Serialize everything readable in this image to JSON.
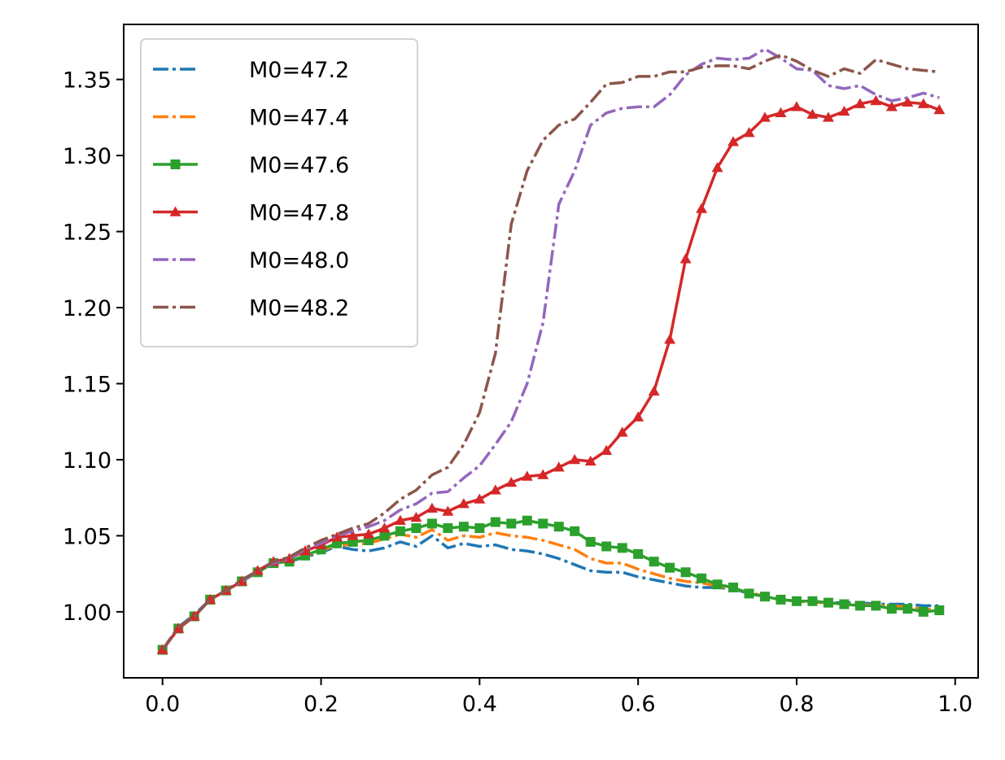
{
  "chart_data": {
    "type": "line",
    "title": "",
    "xlabel": "",
    "ylabel": "",
    "xlim": [
      -0.049,
      1.029
    ],
    "ylim": [
      0.9566,
      1.3862
    ],
    "xticks": [
      0.0,
      0.2,
      0.4,
      0.6,
      0.8,
      1.0
    ],
    "xtick_labels": [
      "0.0",
      "0.2",
      "0.4",
      "0.6",
      "0.8",
      "1.0"
    ],
    "yticks": [
      1.0,
      1.05,
      1.1,
      1.15,
      1.2,
      1.25,
      1.3,
      1.35
    ],
    "ytick_labels": [
      "1.00",
      "1.05",
      "1.10",
      "1.15",
      "1.20",
      "1.25",
      "1.30",
      "1.35"
    ],
    "grid": false,
    "legend_position": "upper-left",
    "x": [
      0.0,
      0.02,
      0.04,
      0.06,
      0.08,
      0.1,
      0.12,
      0.14,
      0.16,
      0.18,
      0.2,
      0.22,
      0.24,
      0.26,
      0.28,
      0.3,
      0.32,
      0.34,
      0.36,
      0.38,
      0.4,
      0.42,
      0.44,
      0.46,
      0.48,
      0.5,
      0.52,
      0.54,
      0.56,
      0.58,
      0.6,
      0.62,
      0.64,
      0.66,
      0.68,
      0.7,
      0.72,
      0.74,
      0.76,
      0.78,
      0.8,
      0.82,
      0.84,
      0.86,
      0.88,
      0.9,
      0.92,
      0.94,
      0.96,
      0.98
    ],
    "series": [
      {
        "name": "M0=47.2",
        "color": "#1f77b4",
        "style": "dashdot",
        "marker": "none",
        "values": [
          0.975,
          0.99,
          0.998,
          1.008,
          1.014,
          1.02,
          1.027,
          1.032,
          1.033,
          1.036,
          1.039,
          1.043,
          1.041,
          1.04,
          1.042,
          1.046,
          1.043,
          1.05,
          1.042,
          1.045,
          1.043,
          1.044,
          1.041,
          1.04,
          1.038,
          1.035,
          1.031,
          1.027,
          1.026,
          1.026,
          1.023,
          1.021,
          1.019,
          1.017,
          1.016,
          1.016,
          1.015,
          1.012,
          1.01,
          1.008,
          1.007,
          1.007,
          1.006,
          1.006,
          1.006,
          1.005,
          1.005,
          1.005,
          1.004,
          1.004
        ]
      },
      {
        "name": "M0=47.4",
        "color": "#ff7f0e",
        "style": "dashdot",
        "marker": "none",
        "values": [
          0.975,
          0.989,
          0.997,
          1.008,
          1.014,
          1.02,
          1.027,
          1.032,
          1.033,
          1.037,
          1.04,
          1.044,
          1.044,
          1.045,
          1.048,
          1.051,
          1.049,
          1.054,
          1.047,
          1.05,
          1.049,
          1.052,
          1.05,
          1.049,
          1.047,
          1.044,
          1.041,
          1.035,
          1.032,
          1.032,
          1.028,
          1.025,
          1.022,
          1.02,
          1.019,
          1.017,
          1.015,
          1.013,
          1.01,
          1.008,
          1.007,
          1.006,
          1.006,
          1.005,
          1.005,
          1.004,
          1.004,
          1.003,
          1.002,
          1.001
        ]
      },
      {
        "name": "M0=47.6",
        "color": "#2ca02c",
        "style": "solid",
        "marker": "square",
        "values": [
          0.975,
          0.989,
          0.997,
          1.008,
          1.014,
          1.02,
          1.026,
          1.032,
          1.033,
          1.037,
          1.041,
          1.045,
          1.046,
          1.047,
          1.05,
          1.053,
          1.055,
          1.058,
          1.055,
          1.056,
          1.055,
          1.059,
          1.058,
          1.06,
          1.058,
          1.056,
          1.053,
          1.046,
          1.043,
          1.042,
          1.038,
          1.033,
          1.029,
          1.026,
          1.022,
          1.018,
          1.016,
          1.012,
          1.01,
          1.008,
          1.007,
          1.007,
          1.006,
          1.005,
          1.004,
          1.004,
          1.002,
          1.002,
          1.0,
          1.001
        ]
      },
      {
        "name": "M0=47.8",
        "color": "#d62728",
        "style": "solid",
        "marker": "triangle",
        "values": [
          0.975,
          0.989,
          0.997,
          1.008,
          1.014,
          1.02,
          1.027,
          1.033,
          1.035,
          1.04,
          1.044,
          1.049,
          1.05,
          1.051,
          1.055,
          1.06,
          1.062,
          1.068,
          1.066,
          1.071,
          1.074,
          1.08,
          1.085,
          1.089,
          1.09,
          1.095,
          1.1,
          1.099,
          1.106,
          1.118,
          1.128,
          1.145,
          1.179,
          1.232,
          1.265,
          1.292,
          1.309,
          1.315,
          1.325,
          1.328,
          1.332,
          1.327,
          1.325,
          1.329,
          1.334,
          1.336,
          1.332,
          1.335,
          1.334,
          1.33
        ]
      },
      {
        "name": "M0=48.0",
        "color": "#9467bd",
        "style": "dashdot",
        "marker": "none",
        "values": [
          0.975,
          0.99,
          0.997,
          1.008,
          1.014,
          1.02,
          1.027,
          1.032,
          1.035,
          1.041,
          1.045,
          1.05,
          1.053,
          1.056,
          1.06,
          1.067,
          1.071,
          1.078,
          1.079,
          1.088,
          1.096,
          1.11,
          1.125,
          1.15,
          1.19,
          1.268,
          1.29,
          1.32,
          1.328,
          1.331,
          1.332,
          1.332,
          1.34,
          1.353,
          1.36,
          1.364,
          1.363,
          1.364,
          1.37,
          1.364,
          1.357,
          1.356,
          1.346,
          1.344,
          1.346,
          1.34,
          1.336,
          1.338,
          1.341,
          1.338
        ]
      },
      {
        "name": "M0=48.2",
        "color": "#8c564b",
        "style": "dashdot",
        "marker": "none",
        "values": [
          0.975,
          0.99,
          0.997,
          1.008,
          1.014,
          1.021,
          1.027,
          1.033,
          1.036,
          1.042,
          1.047,
          1.051,
          1.055,
          1.058,
          1.065,
          1.074,
          1.08,
          1.09,
          1.095,
          1.11,
          1.131,
          1.17,
          1.255,
          1.29,
          1.31,
          1.32,
          1.324,
          1.335,
          1.347,
          1.348,
          1.352,
          1.352,
          1.355,
          1.355,
          1.358,
          1.359,
          1.359,
          1.357,
          1.362,
          1.366,
          1.362,
          1.356,
          1.352,
          1.357,
          1.354,
          1.363,
          1.36,
          1.357,
          1.356,
          1.355
        ]
      }
    ]
  }
}
